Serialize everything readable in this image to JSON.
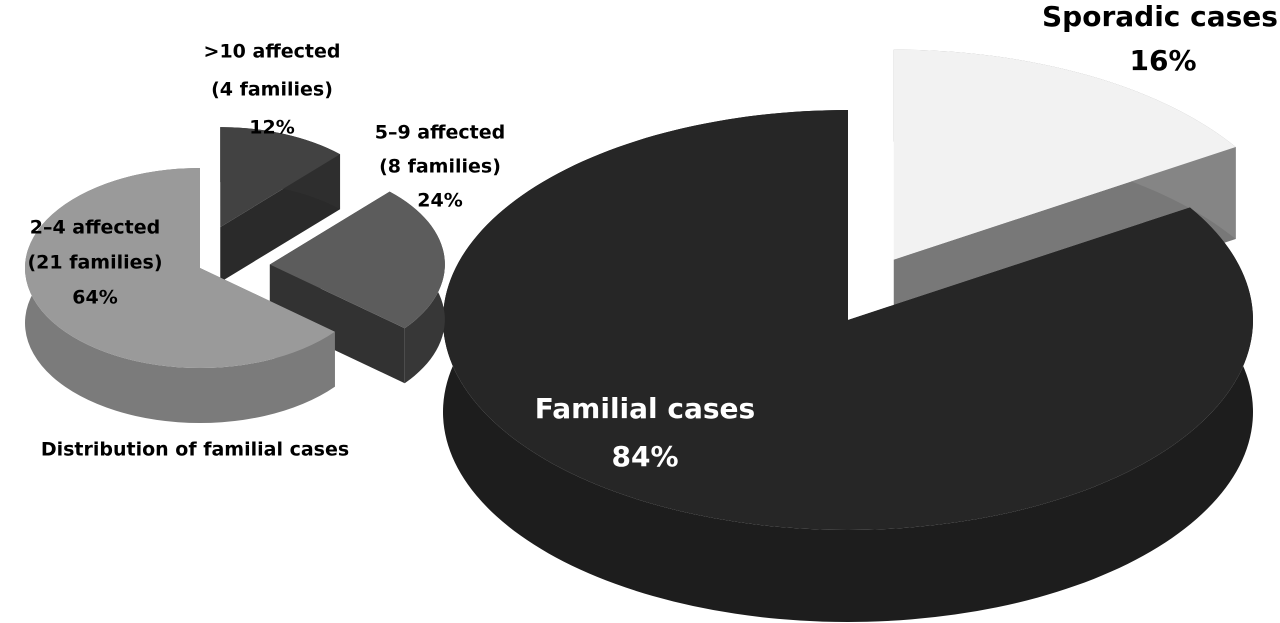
{
  "chart_data": [
    {
      "type": "pie",
      "categories": [
        "Sporadic cases",
        "Familial cases"
      ],
      "values": [
        16,
        84
      ],
      "value_labels": [
        "16%",
        "84%"
      ],
      "colors": [
        "#f2f2f2",
        "#262626"
      ]
    },
    {
      "type": "pie",
      "title": "Distribution of familial cases",
      "categories": [
        ">10 affected",
        "5–9 affected",
        "2–4 affected"
      ],
      "sublabels": [
        "(4 families)",
        "(8 families)",
        "(21 families)"
      ],
      "values": [
        12,
        24,
        64
      ],
      "value_labels": [
        "12%",
        "24%",
        "64%"
      ],
      "colors": [
        "#424242",
        "#5c5c5c",
        "#9a9a9a"
      ]
    }
  ]
}
